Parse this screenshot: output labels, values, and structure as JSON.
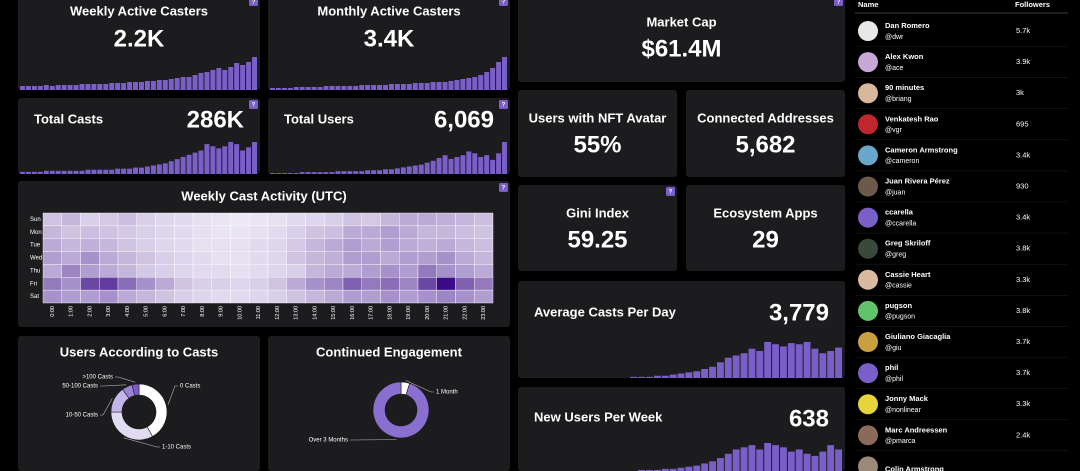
{
  "bar_color": "#7b5fc9",
  "stat_cards": [
    {
      "title": "Weekly Active Casters",
      "value": "2.2K",
      "help": "?",
      "bars": [
        4,
        4,
        4,
        4,
        5,
        4,
        5,
        5,
        5,
        5,
        6,
        6,
        6,
        6,
        6,
        7,
        7,
        7,
        8,
        8,
        8,
        9,
        9,
        10,
        10,
        11,
        12,
        13,
        13,
        15,
        17,
        18,
        20,
        22,
        20,
        23,
        27,
        25,
        28,
        33
      ]
    },
    {
      "title": "Monthly Active Casters",
      "value": "3.4K",
      "help": "?",
      "bars": [
        2,
        2,
        2,
        2,
        3,
        3,
        3,
        3,
        3,
        4,
        4,
        4,
        4,
        4,
        4,
        5,
        5,
        5,
        5,
        5,
        6,
        6,
        6,
        6,
        7,
        7,
        7,
        8,
        8,
        8,
        9,
        10,
        11,
        12,
        13,
        15,
        18,
        22,
        28,
        33
      ]
    },
    {
      "title": "Total Casts",
      "value": "286K",
      "help": "?",
      "bars": [
        2,
        2,
        2,
        2,
        3,
        3,
        3,
        3,
        3,
        3,
        3,
        4,
        4,
        4,
        4,
        4,
        5,
        5,
        5,
        6,
        6,
        7,
        8,
        9,
        10,
        12,
        14,
        16,
        18,
        20,
        22,
        28,
        26,
        24,
        26,
        30,
        28,
        22,
        25,
        30
      ]
    },
    {
      "title": "Total Users",
      "value": "6,069",
      "help": "?",
      "bars": [
        1,
        1,
        1,
        1,
        1,
        2,
        2,
        2,
        2,
        2,
        2,
        3,
        3,
        3,
        3,
        3,
        4,
        4,
        4,
        5,
        5,
        6,
        7,
        8,
        9,
        10,
        12,
        14,
        17,
        20,
        16,
        18,
        20,
        24,
        22,
        18,
        20,
        15,
        22,
        34
      ]
    },
    {
      "title": "Market Cap",
      "value": "$61.4M",
      "help": "?"
    },
    {
      "title": "Users with NFT Avatar",
      "value": "55%"
    },
    {
      "title": "Connected Addresses",
      "value": "5,682"
    },
    {
      "title": "Gini Index",
      "value": "59.25",
      "help": "?"
    },
    {
      "title": "Ecosystem Apps",
      "value": "29"
    },
    {
      "title": "Average Casts Per Day",
      "value": "3,779",
      "bars": [
        0,
        0,
        0,
        0,
        0,
        0,
        0,
        0,
        0,
        0,
        0,
        0,
        0,
        0,
        1,
        1,
        1,
        2,
        2,
        3,
        4,
        5,
        6,
        8,
        10,
        14,
        18,
        20,
        22,
        26,
        24,
        32,
        30,
        28,
        31,
        30,
        32,
        26,
        22,
        24,
        27
      ]
    },
    {
      "title": "New Users Per Week",
      "value": "638",
      "bars": [
        0,
        0,
        0,
        0,
        0,
        0,
        0,
        0,
        0,
        0,
        0,
        0,
        0,
        0,
        0,
        1,
        1,
        1,
        2,
        2,
        3,
        4,
        5,
        7,
        9,
        12,
        16,
        20,
        22,
        24,
        20,
        26,
        24,
        22,
        18,
        20,
        16,
        14,
        18,
        24,
        20
      ]
    }
  ],
  "heatmap": {
    "title": "Weekly Cast Activity (UTC)",
    "help": "?",
    "rows": [
      "Sun",
      "Mon",
      "Tue",
      "Wed",
      "Thu",
      "Fri",
      "Sat"
    ],
    "columns": [
      "0:00",
      "1:00",
      "2:00",
      "3:00",
      "4:00",
      "5:00",
      "6:00",
      "7:00",
      "8:00",
      "9:00",
      "10:00",
      "11:00",
      "12:00",
      "13:00",
      "14:00",
      "15:00",
      "16:00",
      "17:00",
      "18:00",
      "19:00",
      "20:00",
      "21:00",
      "22:00",
      "23:00"
    ],
    "values": [
      [
        20,
        25,
        15,
        18,
        22,
        15,
        12,
        10,
        8,
        6,
        5,
        6,
        8,
        10,
        12,
        15,
        20,
        18,
        25,
        30,
        30,
        28,
        25,
        22
      ],
      [
        25,
        20,
        22,
        20,
        18,
        15,
        12,
        10,
        8,
        6,
        6,
        8,
        10,
        15,
        20,
        22,
        30,
        30,
        35,
        30,
        25,
        25,
        22,
        20
      ],
      [
        30,
        25,
        28,
        25,
        20,
        15,
        12,
        10,
        8,
        8,
        8,
        10,
        12,
        18,
        25,
        30,
        35,
        30,
        35,
        30,
        28,
        30,
        25,
        22
      ],
      [
        35,
        30,
        40,
        30,
        25,
        20,
        15,
        12,
        10,
        8,
        8,
        10,
        12,
        20,
        25,
        28,
        35,
        35,
        30,
        35,
        35,
        40,
        30,
        25
      ],
      [
        30,
        45,
        35,
        30,
        25,
        18,
        15,
        12,
        10,
        10,
        8,
        10,
        12,
        15,
        25,
        30,
        30,
        35,
        40,
        35,
        50,
        40,
        35,
        30
      ],
      [
        50,
        40,
        70,
        75,
        55,
        40,
        30,
        20,
        15,
        15,
        12,
        15,
        20,
        30,
        40,
        45,
        60,
        50,
        55,
        45,
        70,
        95,
        60,
        50
      ],
      [
        40,
        35,
        35,
        40,
        30,
        25,
        20,
        15,
        12,
        10,
        10,
        12,
        15,
        20,
        25,
        30,
        35,
        35,
        40,
        35,
        40,
        45,
        40,
        35
      ]
    ]
  },
  "donuts": [
    {
      "title": "Users According to Casts",
      "slices": [
        {
          "label": "0 Casts",
          "value": 42,
          "color": "#ffffff"
        },
        {
          "label": "1-10 Casts",
          "value": 33,
          "color": "#e2dcf3"
        },
        {
          "label": "10-50 Casts",
          "value": 15,
          "color": "#c4b6ea"
        },
        {
          "label": "50-100 Casts",
          "value": 6,
          "color": "#9b84d9"
        },
        {
          "label": ">100 Casts",
          "value": 4,
          "color": "#7a5ccc"
        }
      ]
    },
    {
      "title": "Continued Engagement",
      "slices": [
        {
          "label": "1 Month",
          "value": 5,
          "color": "#ffffff"
        },
        {
          "label": "Over 3 Months",
          "value": 95,
          "color": "#8a6fd1"
        }
      ]
    }
  ],
  "table": {
    "headers": [
      "Name",
      "Followers"
    ],
    "rows": [
      {
        "name": "Dan Romero",
        "handle": "@dwr",
        "followers": "5.7k"
      },
      {
        "name": "Alex Kwon",
        "handle": "@ace",
        "followers": "3.9k"
      },
      {
        "name": "90 minutes",
        "handle": "@briang",
        "followers": "3k"
      },
      {
        "name": "Venkatesh Rao",
        "handle": "@vgr",
        "followers": "695"
      },
      {
        "name": "Cameron Armstrong",
        "handle": "@cameron",
        "followers": "3.4k"
      },
      {
        "name": "Juan Rivera Pérez",
        "handle": "@juan",
        "followers": "930"
      },
      {
        "name": "ccarella",
        "handle": "@ccarella",
        "followers": "3.4k"
      },
      {
        "name": "Greg Skriloff",
        "handle": "@greg",
        "followers": "3.8k"
      },
      {
        "name": "Cassie Heart",
        "handle": "@cassie",
        "followers": "3.3k"
      },
      {
        "name": "pugson",
        "handle": "@pugson",
        "followers": "3.8k"
      },
      {
        "name": "Giuliano Giacaglia",
        "handle": "@giu",
        "followers": "3.7k"
      },
      {
        "name": "phil",
        "handle": "@phil",
        "followers": "3.7k"
      },
      {
        "name": "Jonny Mack",
        "handle": "@nonlinear",
        "followers": "3.3k"
      },
      {
        "name": "Marc Andreessen",
        "handle": "@pmarca",
        "followers": "2.4k"
      },
      {
        "name": "Colin Armstrong"
      }
    ]
  }
}
